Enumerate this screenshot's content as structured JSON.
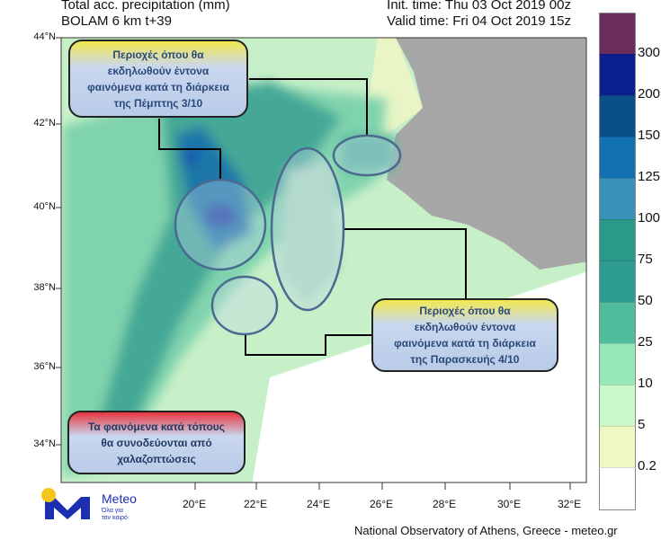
{
  "header": {
    "title": "Total acc. precipitation (mm)",
    "model": "BOLAM 6 km t+39",
    "init_time": "Init. time: Thu 03 Oct 2019 00z",
    "valid_time": "Valid time: Fri 04 Oct 2019 15z"
  },
  "map": {
    "lat_labels": [
      "44°N",
      "42°N",
      "40°N",
      "38°N",
      "36°N",
      "34°N"
    ],
    "lon_labels": [
      "20°E",
      "22°E",
      "24°E",
      "26°E",
      "28°E",
      "30°E",
      "32°E"
    ]
  },
  "colorbar": {
    "labels": [
      "300",
      "200",
      "150",
      "125",
      "100",
      "75",
      "50",
      "25",
      "10",
      "5",
      "0.2"
    ],
    "colors": [
      "#6b2d5c",
      "#0c1f91",
      "#0b4f8a",
      "#1271b1",
      "#3a92b8",
      "#2c9a8a",
      "#2f9c90",
      "#4fbc9c",
      "#96e8b9",
      "#c8f8cc",
      "#eff8c2",
      "#ffffff"
    ]
  },
  "callouts": {
    "thursday": [
      "Περιοχές όπου θα",
      "εκδηλωθούν έντονα",
      "φαινόμενα κατά τη διάρκεια",
      "της Πέμπτης 3/10"
    ],
    "friday": [
      "Περιοχές όπου θα",
      "εκδηλωθούν έντονα",
      "φαινόμενα κατά τη διάρκεια",
      "της Παρασκευής 4/10"
    ],
    "hail": [
      "Τα φαινόμενα κατά τόπους",
      "θα συνοδεύονται από",
      "χαλαζοπτώσεις"
    ]
  },
  "logo": {
    "name": "Meteo",
    "tagline1": "Όλα για",
    "tagline2": "τον καιρό"
  },
  "footer": "National Observatory of Athens, Greece - meteo.gr"
}
